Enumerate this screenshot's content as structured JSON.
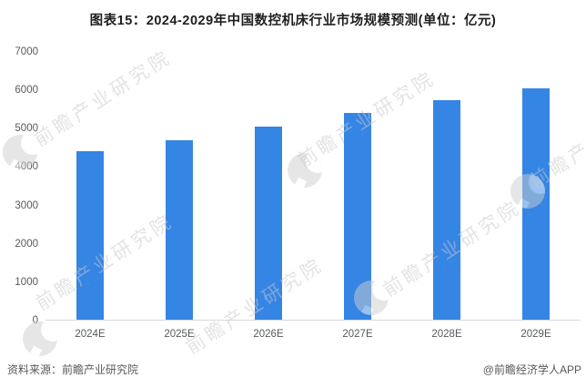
{
  "title": "图表15：2024-2029年中国数控机床行业市场规模预测(单位：亿元)",
  "chart_data": {
    "type": "bar",
    "title": "2024-2029年中国数控机床行业市场规模预测",
    "unit": "亿元",
    "categories": [
      "2024E",
      "2025E",
      "2026E",
      "2027E",
      "2028E",
      "2029E"
    ],
    "values": [
      4400,
      4700,
      5050,
      5400,
      5750,
      6050
    ],
    "ylim": [
      0,
      7000
    ],
    "yticks": [
      "7000",
      "6000",
      "5000",
      "4000",
      "3000",
      "2000",
      "1000",
      "0"
    ],
    "xlabel": "",
    "ylabel": "",
    "grid": false,
    "legend": false,
    "bar_color": "#3585e4",
    "axis_line_color": "#d9d9d9",
    "tick_label_color": "#595959"
  },
  "footer": {
    "source": "资料来源：前瞻产业研究院",
    "credit": "@前瞻经济学人APP"
  },
  "watermark": {
    "text": "前瞻产业研究院"
  }
}
